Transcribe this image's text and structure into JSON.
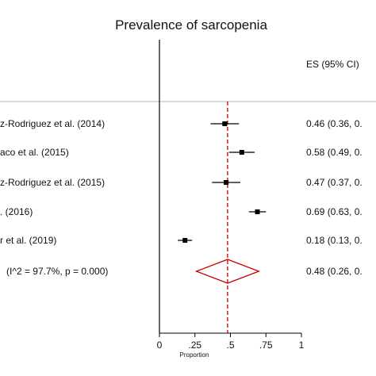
{
  "chart_data": {
    "type": "forest",
    "title": "Prevalence of sarcopenia",
    "column_header": "ES (95% CI)",
    "xlabel": "Proportion",
    "xlim": [
      0,
      1
    ],
    "x_ticks": [
      "0",
      ".25",
      ".5",
      ".75",
      "1"
    ],
    "x_tick_values": [
      0,
      0.25,
      0.5,
      0.75,
      1
    ],
    "overall_reference": 0.48,
    "studies": [
      {
        "label": "z-Rodriguez et al. (2014)",
        "es": 0.46,
        "lo": 0.36,
        "hi": 0.56,
        "ci_text": "0.46 (0.36, 0."
      },
      {
        "label": "aco et al. (2015)",
        "es": 0.58,
        "lo": 0.49,
        "hi": 0.67,
        "ci_text": "0.58 (0.49, 0."
      },
      {
        "label": "z-Rodriguez et al. (2015)",
        "es": 0.47,
        "lo": 0.37,
        "hi": 0.57,
        "ci_text": "0.47 (0.37, 0."
      },
      {
        "label": ". (2016)",
        "es": 0.69,
        "lo": 0.63,
        "hi": 0.75,
        "ci_text": "0.69 (0.63, 0."
      },
      {
        "label": "r et al. (2019)",
        "es": 0.18,
        "lo": 0.13,
        "hi": 0.23,
        "ci_text": "0.18 (0.13, 0."
      }
    ],
    "overall": {
      "label": "(I^2 = 97.7%, p = 0.000)",
      "es": 0.48,
      "lo": 0.26,
      "hi": 0.7,
      "ci_text": "0.48 (0.26, 0."
    },
    "colors": {
      "text": "#111111",
      "axis": "#000000",
      "reference_line": "#cc0000",
      "diamond": "#cc0000",
      "marker": "#000000",
      "separator": "#8fa3b8"
    }
  }
}
